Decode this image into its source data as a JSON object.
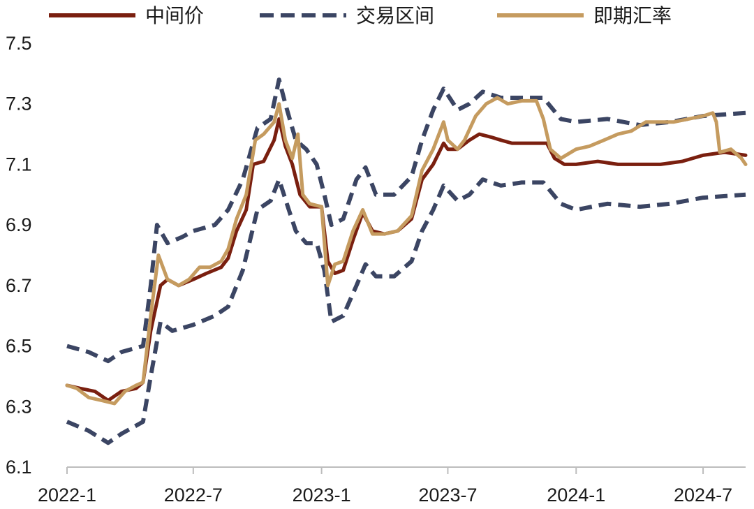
{
  "chart_data": {
    "type": "line",
    "title": "",
    "xlabel": "",
    "ylabel": "",
    "ylim": [
      6.1,
      7.5
    ],
    "y_ticks": [
      "7.5",
      "7.3",
      "7.1",
      "6.9",
      "6.7",
      "6.5",
      "6.3",
      "6.1"
    ],
    "x_range": [
      "2022-01-01",
      "2024-08-31"
    ],
    "x_ticks": [
      {
        "label": "2022-1",
        "date": "2022-01-01"
      },
      {
        "label": "2022-7",
        "date": "2022-07-01"
      },
      {
        "label": "2023-1",
        "date": "2023-01-01"
      },
      {
        "label": "2023-7",
        "date": "2023-07-01"
      },
      {
        "label": "2024-1",
        "date": "2024-01-01"
      },
      {
        "label": "2024-7",
        "date": "2024-07-01"
      }
    ],
    "grid": false,
    "legend_position": "top",
    "series": [
      {
        "name": "中间价",
        "color": "#7a1f0f",
        "style": "solid",
        "points": [
          [
            "2022-01-01",
            6.37
          ],
          [
            "2022-01-20",
            6.36
          ],
          [
            "2022-02-10",
            6.35
          ],
          [
            "2022-03-01",
            6.32
          ],
          [
            "2022-03-20",
            6.35
          ],
          [
            "2022-04-10",
            6.36
          ],
          [
            "2022-04-20",
            6.38
          ],
          [
            "2022-05-01",
            6.55
          ],
          [
            "2022-05-15",
            6.7
          ],
          [
            "2022-05-25",
            6.72
          ],
          [
            "2022-06-10",
            6.7
          ],
          [
            "2022-07-01",
            6.72
          ],
          [
            "2022-07-20",
            6.74
          ],
          [
            "2022-08-10",
            6.76
          ],
          [
            "2022-08-20",
            6.79
          ],
          [
            "2022-09-01",
            6.88
          ],
          [
            "2022-09-15",
            6.95
          ],
          [
            "2022-09-25",
            7.1
          ],
          [
            "2022-10-10",
            7.11
          ],
          [
            "2022-10-25",
            7.18
          ],
          [
            "2022-11-01",
            7.25
          ],
          [
            "2022-11-10",
            7.16
          ],
          [
            "2022-11-20",
            7.1
          ],
          [
            "2022-12-01",
            7.0
          ],
          [
            "2022-12-15",
            6.96
          ],
          [
            "2023-01-01",
            6.96
          ],
          [
            "2023-01-10",
            6.78
          ],
          [
            "2023-01-20",
            6.74
          ],
          [
            "2023-02-01",
            6.75
          ],
          [
            "2023-02-15",
            6.85
          ],
          [
            "2023-03-01",
            6.94
          ],
          [
            "2023-03-15",
            6.88
          ],
          [
            "2023-04-01",
            6.87
          ],
          [
            "2023-04-20",
            6.88
          ],
          [
            "2023-05-10",
            6.92
          ],
          [
            "2023-05-25",
            7.05
          ],
          [
            "2023-06-10",
            7.1
          ],
          [
            "2023-06-25",
            7.17
          ],
          [
            "2023-07-01",
            7.15
          ],
          [
            "2023-07-15",
            7.15
          ],
          [
            "2023-08-01",
            7.18
          ],
          [
            "2023-08-15",
            7.2
          ],
          [
            "2023-09-01",
            7.19
          ],
          [
            "2023-09-15",
            7.18
          ],
          [
            "2023-10-01",
            7.17
          ],
          [
            "2023-11-01",
            7.17
          ],
          [
            "2023-11-20",
            7.17
          ],
          [
            "2023-12-01",
            7.12
          ],
          [
            "2023-12-15",
            7.1
          ],
          [
            "2024-01-01",
            7.1
          ],
          [
            "2024-02-01",
            7.11
          ],
          [
            "2024-03-01",
            7.1
          ],
          [
            "2024-04-01",
            7.1
          ],
          [
            "2024-05-01",
            7.1
          ],
          [
            "2024-06-01",
            7.11
          ],
          [
            "2024-07-01",
            7.13
          ],
          [
            "2024-08-01",
            7.14
          ],
          [
            "2024-08-31",
            7.13
          ]
        ]
      },
      {
        "name": "交易区间",
        "color": "#3b4563",
        "style": "dashed",
        "points": [
          [
            "2022-01-01",
            6.5
          ],
          [
            "2022-02-01",
            6.48
          ],
          [
            "2022-03-01",
            6.45
          ],
          [
            "2022-03-20",
            6.48
          ],
          [
            "2022-04-20",
            6.5
          ],
          [
            "2022-05-01",
            6.7
          ],
          [
            "2022-05-10",
            6.9
          ],
          [
            "2022-05-25",
            6.84
          ],
          [
            "2022-06-15",
            6.86
          ],
          [
            "2022-07-01",
            6.88
          ],
          [
            "2022-08-01",
            6.9
          ],
          [
            "2022-08-20",
            6.95
          ],
          [
            "2022-09-10",
            7.05
          ],
          [
            "2022-10-01",
            7.22
          ],
          [
            "2022-10-20",
            7.25
          ],
          [
            "2022-11-01",
            7.38
          ],
          [
            "2022-11-10",
            7.3
          ],
          [
            "2022-11-25",
            7.18
          ],
          [
            "2022-12-10",
            7.15
          ],
          [
            "2022-12-25",
            7.1
          ],
          [
            "2023-01-05",
            7.0
          ],
          [
            "2023-01-15",
            6.9
          ],
          [
            "2023-02-01",
            6.92
          ],
          [
            "2023-02-20",
            7.05
          ],
          [
            "2023-03-05",
            7.09
          ],
          [
            "2023-03-20",
            7.0
          ],
          [
            "2023-04-15",
            7.0
          ],
          [
            "2023-05-10",
            7.06
          ],
          [
            "2023-05-25",
            7.18
          ],
          [
            "2023-06-10",
            7.28
          ],
          [
            "2023-06-25",
            7.35
          ],
          [
            "2023-07-15",
            7.28
          ],
          [
            "2023-08-01",
            7.3
          ],
          [
            "2023-08-20",
            7.34
          ],
          [
            "2023-09-15",
            7.32
          ],
          [
            "2023-10-15",
            7.32
          ],
          [
            "2023-11-15",
            7.32
          ],
          [
            "2023-12-10",
            7.25
          ],
          [
            "2024-01-01",
            7.24
          ],
          [
            "2024-02-15",
            7.25
          ],
          [
            "2024-04-01",
            7.23
          ],
          [
            "2024-05-15",
            7.24
          ],
          [
            "2024-07-01",
            7.26
          ],
          [
            "2024-08-31",
            7.27
          ]
        ]
      },
      {
        "name": "交易区间下限",
        "color": "#3b4563",
        "style": "dashed",
        "points": [
          [
            "2022-01-01",
            6.25
          ],
          [
            "2022-02-01",
            6.22
          ],
          [
            "2022-03-01",
            6.18
          ],
          [
            "2022-03-20",
            6.21
          ],
          [
            "2022-04-20",
            6.25
          ],
          [
            "2022-05-01",
            6.4
          ],
          [
            "2022-05-15",
            6.58
          ],
          [
            "2022-06-01",
            6.55
          ],
          [
            "2022-07-01",
            6.57
          ],
          [
            "2022-08-01",
            6.6
          ],
          [
            "2022-08-20",
            6.63
          ],
          [
            "2022-09-10",
            6.75
          ],
          [
            "2022-10-01",
            6.95
          ],
          [
            "2022-10-20",
            6.98
          ],
          [
            "2022-11-01",
            7.05
          ],
          [
            "2022-11-15",
            6.95
          ],
          [
            "2022-11-25",
            6.88
          ],
          [
            "2022-12-10",
            6.84
          ],
          [
            "2022-12-25",
            6.84
          ],
          [
            "2023-01-05",
            6.75
          ],
          [
            "2023-01-15",
            6.58
          ],
          [
            "2023-02-01",
            6.6
          ],
          [
            "2023-02-20",
            6.7
          ],
          [
            "2023-03-05",
            6.77
          ],
          [
            "2023-03-20",
            6.73
          ],
          [
            "2023-04-15",
            6.73
          ],
          [
            "2023-05-10",
            6.78
          ],
          [
            "2023-05-25",
            6.88
          ],
          [
            "2023-06-10",
            6.95
          ],
          [
            "2023-06-25",
            7.03
          ],
          [
            "2023-07-15",
            6.98
          ],
          [
            "2023-08-01",
            7.0
          ],
          [
            "2023-08-20",
            7.05
          ],
          [
            "2023-09-15",
            7.03
          ],
          [
            "2023-10-15",
            7.04
          ],
          [
            "2023-11-15",
            7.04
          ],
          [
            "2023-12-10",
            6.97
          ],
          [
            "2024-01-01",
            6.95
          ],
          [
            "2024-02-15",
            6.97
          ],
          [
            "2024-04-01",
            6.96
          ],
          [
            "2024-05-15",
            6.97
          ],
          [
            "2024-07-01",
            6.99
          ],
          [
            "2024-08-31",
            7.0
          ]
        ]
      },
      {
        "name": "即期汇率",
        "color": "#c59b5f",
        "style": "solid",
        "points": [
          [
            "2022-01-01",
            6.37
          ],
          [
            "2022-01-15",
            6.36
          ],
          [
            "2022-02-01",
            6.33
          ],
          [
            "2022-02-20",
            6.32
          ],
          [
            "2022-03-10",
            6.31
          ],
          [
            "2022-03-25",
            6.35
          ],
          [
            "2022-04-10",
            6.37
          ],
          [
            "2022-04-20",
            6.38
          ],
          [
            "2022-05-01",
            6.6
          ],
          [
            "2022-05-12",
            6.8
          ],
          [
            "2022-05-25",
            6.72
          ],
          [
            "2022-06-10",
            6.7
          ],
          [
            "2022-06-25",
            6.72
          ],
          [
            "2022-07-10",
            6.76
          ],
          [
            "2022-07-25",
            6.76
          ],
          [
            "2022-08-10",
            6.78
          ],
          [
            "2022-08-20",
            6.82
          ],
          [
            "2022-09-01",
            6.92
          ],
          [
            "2022-09-15",
            7.0
          ],
          [
            "2022-09-28",
            7.18
          ],
          [
            "2022-10-10",
            7.2
          ],
          [
            "2022-10-25",
            7.24
          ],
          [
            "2022-11-01",
            7.3
          ],
          [
            "2022-11-10",
            7.18
          ],
          [
            "2022-11-20",
            7.12
          ],
          [
            "2022-11-28",
            7.2
          ],
          [
            "2022-12-05",
            7.0
          ],
          [
            "2022-12-15",
            6.97
          ],
          [
            "2023-01-01",
            6.96
          ],
          [
            "2023-01-10",
            6.7
          ],
          [
            "2023-01-20",
            6.77
          ],
          [
            "2023-02-01",
            6.78
          ],
          [
            "2023-02-15",
            6.88
          ],
          [
            "2023-03-01",
            6.95
          ],
          [
            "2023-03-15",
            6.87
          ],
          [
            "2023-04-01",
            6.87
          ],
          [
            "2023-04-20",
            6.88
          ],
          [
            "2023-05-10",
            6.93
          ],
          [
            "2023-05-25",
            7.08
          ],
          [
            "2023-06-10",
            7.15
          ],
          [
            "2023-06-25",
            7.24
          ],
          [
            "2023-07-01",
            7.18
          ],
          [
            "2023-07-15",
            7.15
          ],
          [
            "2023-07-25",
            7.18
          ],
          [
            "2023-08-10",
            7.26
          ],
          [
            "2023-08-25",
            7.3
          ],
          [
            "2023-09-10",
            7.32
          ],
          [
            "2023-09-25",
            7.3
          ],
          [
            "2023-10-15",
            7.31
          ],
          [
            "2023-11-05",
            7.31
          ],
          [
            "2023-11-15",
            7.25
          ],
          [
            "2023-11-25",
            7.15
          ],
          [
            "2023-12-10",
            7.12
          ],
          [
            "2024-01-01",
            7.15
          ],
          [
            "2024-01-20",
            7.16
          ],
          [
            "2024-02-10",
            7.18
          ],
          [
            "2024-03-01",
            7.2
          ],
          [
            "2024-03-20",
            7.21
          ],
          [
            "2024-04-10",
            7.24
          ],
          [
            "2024-05-01",
            7.24
          ],
          [
            "2024-05-20",
            7.24
          ],
          [
            "2024-06-10",
            7.25
          ],
          [
            "2024-07-01",
            7.26
          ],
          [
            "2024-07-15",
            7.27
          ],
          [
            "2024-07-20",
            7.24
          ],
          [
            "2024-07-25",
            7.14
          ],
          [
            "2024-08-10",
            7.15
          ],
          [
            "2024-08-25",
            7.12
          ],
          [
            "2024-08-31",
            7.1
          ]
        ]
      }
    ]
  },
  "legend": [
    {
      "label": "中间价",
      "color": "#7a1f0f",
      "style": "solid"
    },
    {
      "label": "交易区间",
      "color": "#3b4563",
      "style": "dashed"
    },
    {
      "label": "即期汇率",
      "color": "#c59b5f",
      "style": "solid"
    }
  ]
}
